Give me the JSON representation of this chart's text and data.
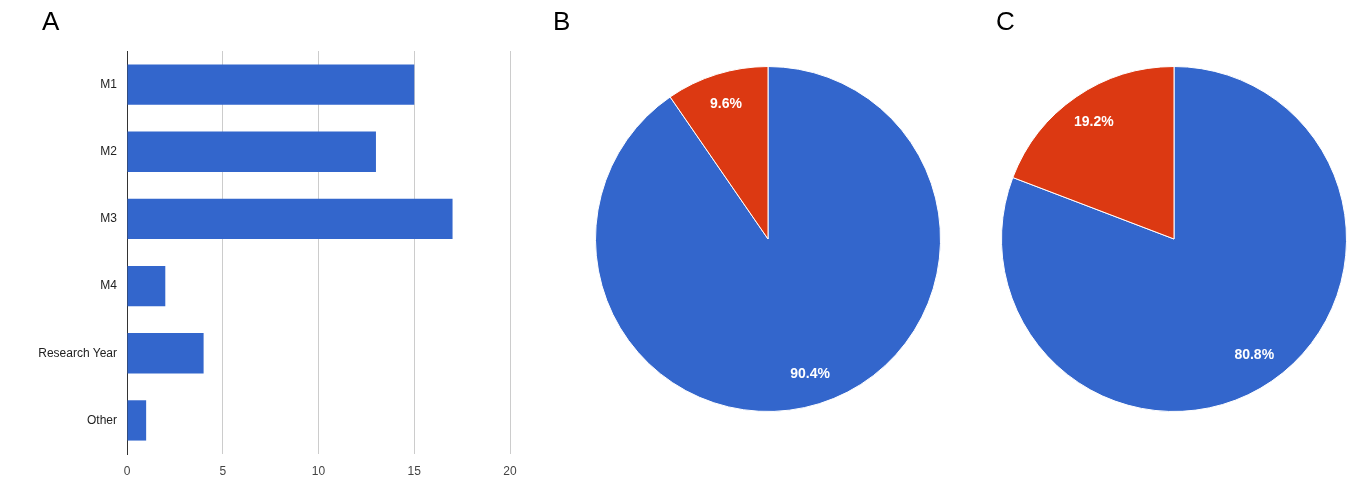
{
  "chart_data": [
    {
      "type": "bar",
      "title": "A",
      "orientation": "horizontal",
      "categories": [
        "M1",
        "M2",
        "M3",
        "M4",
        "Research Year",
        "Other"
      ],
      "values": [
        15,
        13,
        17,
        2,
        4,
        1
      ],
      "color": "#3366cc",
      "xlim": [
        0,
        20
      ],
      "xticks": [
        0,
        5,
        10,
        15,
        20
      ],
      "grid": "x"
    },
    {
      "type": "pie",
      "title": "B",
      "categories": [
        null,
        null
      ],
      "values": [
        90.4,
        9.6
      ],
      "colors": [
        "#3366cc",
        "#dc3912"
      ],
      "value_labels": [
        "90.4%",
        "9.6%"
      ]
    },
    {
      "type": "pie",
      "title": "C",
      "categories": [
        null,
        null
      ],
      "values": [
        80.8,
        19.2
      ],
      "colors": [
        "#3366cc",
        "#dc3912"
      ],
      "value_labels": [
        "80.8%",
        "19.2%"
      ]
    }
  ]
}
